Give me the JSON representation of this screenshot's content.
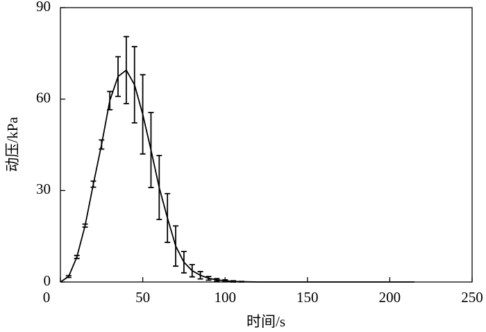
{
  "chart_data": {
    "type": "line",
    "x_label": "时间/s",
    "y_label": "动压/kPa",
    "x": [
      0,
      5,
      10,
      15,
      20,
      25,
      30,
      35,
      40,
      45,
      50,
      55,
      60,
      65,
      70,
      75,
      80,
      85,
      90,
      95,
      100,
      105,
      110,
      120,
      140,
      160,
      180,
      200,
      215
    ],
    "series": [
      {
        "name": "动压",
        "color": "#000000",
        "values": [
          0,
          1.8,
          8.2,
          18.5,
          32.1,
          45.1,
          59.5,
          67.4,
          69.5,
          64.7,
          55,
          43.3,
          31,
          21,
          11.8,
          6.5,
          3.7,
          2.2,
          1.2,
          0.7,
          0.4,
          0.2,
          0.1,
          0,
          0,
          0,
          0,
          0,
          0
        ],
        "errors": [
          0,
          0.3,
          0.5,
          0.5,
          1,
          1.5,
          3,
          6.5,
          11,
          12.5,
          13,
          12.3,
          10.5,
          8,
          6.6,
          3.5,
          2,
          1.2,
          0.6,
          0.4,
          0.3,
          0.2,
          0.1,
          0,
          0,
          0,
          0,
          0,
          0
        ]
      }
    ],
    "xlim": [
      0,
      250
    ],
    "xticks": [
      0,
      50,
      100,
      150,
      200,
      250
    ],
    "ylim": [
      0,
      90
    ],
    "yticks": [
      0,
      30,
      60,
      90
    ]
  }
}
